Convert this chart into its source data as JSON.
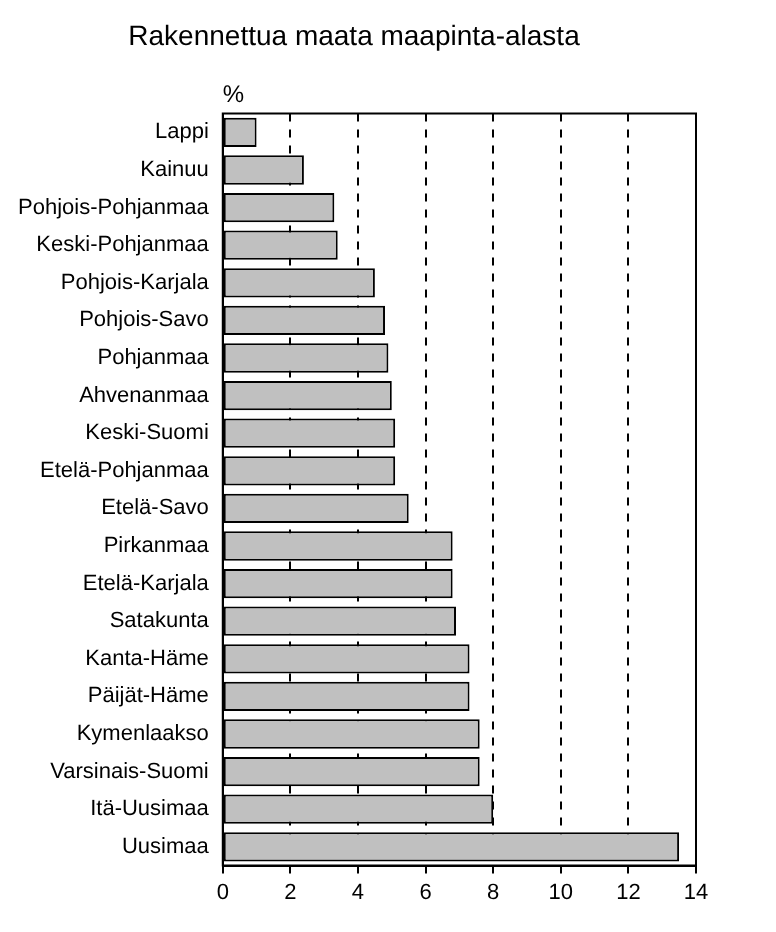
{
  "chart_data": {
    "type": "bar",
    "orientation": "horizontal",
    "title": "Rakennettua maata maapinta-alasta",
    "xlabel": "%",
    "categories": [
      "Lappi",
      "Kainuu",
      "Pohjois-Pohjanmaa",
      "Keski-Pohjanmaa",
      "Pohjois-Karjala",
      "Pohjois-Savo",
      "Pohjanmaa",
      "Ahvenanmaa",
      "Keski-Suomi",
      "Etelä-Pohjanmaa",
      "Etelä-Savo",
      "Pirkanmaa",
      "Etelä-Karjala",
      "Satakunta",
      "Kanta-Häme",
      "Päijät-Häme",
      "Kymenlaakso",
      "Varsinais-Suomi",
      "Itä-Uusimaa",
      "Uusimaa"
    ],
    "values": [
      1.0,
      2.4,
      3.3,
      3.4,
      4.5,
      4.8,
      4.9,
      5.0,
      5.1,
      5.1,
      5.5,
      6.8,
      6.8,
      6.9,
      7.3,
      7.3,
      7.6,
      7.6,
      8.0,
      13.5
    ],
    "color": "#c0c0c0",
    "xlim": [
      0,
      14
    ],
    "xticks": [
      0,
      2,
      4,
      6,
      8,
      10,
      12,
      14
    ],
    "grid": "x",
    "legend": false
  }
}
